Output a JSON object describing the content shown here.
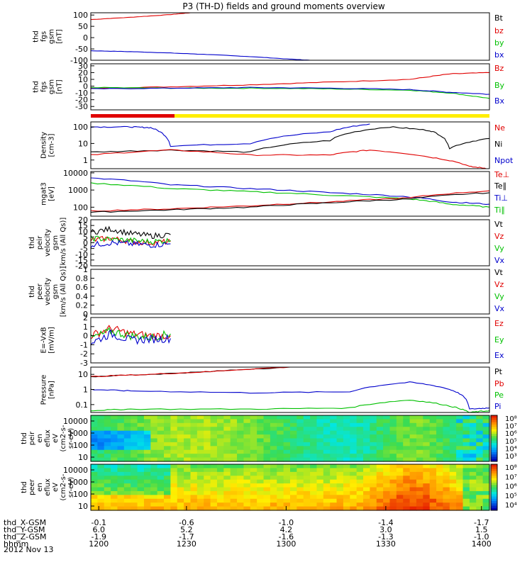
{
  "title": "P3 (TH-D) fields and ground moments overview",
  "chart_data": [
    {
      "type": "line",
      "id": "fgs-gsm-large",
      "ylabel": [
        "thd",
        "fgs",
        "gsm",
        "[nT]"
      ],
      "yticks": [
        100,
        50,
        0,
        -50,
        -100
      ],
      "ylim": [
        -100,
        110
      ],
      "legend": [
        {
          "label": "Bt",
          "color": "#000000"
        },
        {
          "label": "bz",
          "color": "#e00000"
        },
        {
          "label": "by",
          "color": "#00c000"
        },
        {
          "label": "bx",
          "color": "#0000cc"
        }
      ],
      "series": [
        {
          "name": "bz",
          "color": "#e00000",
          "x": [
            0,
            0.1,
            0.2,
            0.25
          ],
          "y": [
            80,
            90,
            102,
            110
          ]
        },
        {
          "name": "bx",
          "color": "#0000cc",
          "x": [
            0,
            0.1,
            0.2,
            0.3,
            0.4,
            0.5,
            0.55
          ],
          "y": [
            -58,
            -62,
            -68,
            -75,
            -84,
            -95,
            -100
          ]
        }
      ]
    },
    {
      "type": "line",
      "id": "fgs-gsm-small",
      "ylabel": [
        "thd",
        "fgs",
        "gsm",
        "[nT]"
      ],
      "yticks": [
        30,
        20,
        10,
        0,
        -10,
        -20,
        -30
      ],
      "ylim": [
        -35,
        33
      ],
      "legend": [
        {
          "label": "Bz",
          "color": "#e00000"
        },
        {
          "label": "By",
          "color": "#00c000"
        },
        {
          "label": "Bx",
          "color": "#0000cc"
        }
      ],
      "series": [
        {
          "name": "Bz",
          "color": "#e00000",
          "x": [
            0,
            0.2,
            0.4,
            0.6,
            0.8,
            0.9,
            1.0
          ],
          "y": [
            -3,
            -1,
            2,
            6,
            10,
            18,
            20
          ]
        },
        {
          "name": "By",
          "color": "#00c000",
          "x": [
            0,
            0.2,
            0.4,
            0.6,
            0.8,
            0.9,
            1.0
          ],
          "y": [
            -2,
            -3,
            -3,
            -4,
            -6,
            -10,
            -18
          ]
        },
        {
          "name": "Bx",
          "color": "#0000cc",
          "x": [
            0,
            0.2,
            0.4,
            0.6,
            0.8,
            0.9,
            1.0
          ],
          "y": [
            -4,
            -3,
            -2,
            -3,
            -5,
            -9,
            -12
          ]
        }
      ]
    },
    {
      "type": "line",
      "id": "density",
      "ylabel": [
        "Density",
        "[cm-3]"
      ],
      "yscale": "log",
      "yticks": [
        100,
        10,
        1
      ],
      "ylim": [
        0.3,
        200
      ],
      "legend": [
        {
          "label": "Ne",
          "color": "#e00000"
        },
        {
          "label": "Ni",
          "color": "#000000"
        },
        {
          "label": "Npot",
          "color": "#0000cc"
        }
      ],
      "series": [
        {
          "name": "Npot",
          "color": "#0000cc",
          "x": [
            0,
            0.1,
            0.15,
            0.2,
            0.4,
            0.6,
            0.7
          ],
          "y": [
            100,
            100,
            90,
            7,
            10,
            50,
            150
          ]
        },
        {
          "name": "Ni",
          "color": "#000000",
          "x": [
            0,
            0.2,
            0.4,
            0.6,
            0.75,
            0.85,
            0.9,
            1.0
          ],
          "y": [
            3,
            4,
            3,
            15,
            100,
            60,
            5,
            20
          ]
        },
        {
          "name": "Ne",
          "color": "#e00000",
          "x": [
            0,
            0.2,
            0.4,
            0.6,
            0.7,
            0.85,
            0.95,
            1.0
          ],
          "y": [
            2,
            4,
            2,
            2,
            4,
            1.5,
            0.4,
            0.3
          ]
        }
      ]
    },
    {
      "type": "line",
      "id": "temperature",
      "ylabel": [
        "mgat3",
        "[eV]"
      ],
      "yscale": "log",
      "yticks": [
        10000,
        1000,
        100
      ],
      "ylim": [
        30,
        12000
      ],
      "legend": [
        {
          "label": "Te⊥",
          "color": "#e00000"
        },
        {
          "label": "Te∥",
          "color": "#000000"
        },
        {
          "label": "Ti⊥",
          "color": "#0000cc"
        },
        {
          "label": "Ti∥",
          "color": "#00c000"
        }
      ],
      "series": [
        {
          "name": "Ti⊥",
          "color": "#0000cc",
          "x": [
            0,
            0.2,
            0.4,
            0.6,
            0.8,
            0.9,
            1.0
          ],
          "y": [
            5000,
            2000,
            1200,
            700,
            400,
            200,
            150
          ]
        },
        {
          "name": "Ti∥",
          "color": "#00c000",
          "x": [
            0,
            0.2,
            0.4,
            0.6,
            0.8,
            0.9,
            1.0
          ],
          "y": [
            2500,
            1200,
            800,
            500,
            300,
            150,
            100
          ]
        },
        {
          "name": "Te⊥",
          "color": "#e00000",
          "x": [
            0,
            0.2,
            0.4,
            0.6,
            0.8,
            1.0
          ],
          "y": [
            60,
            80,
            120,
            200,
            350,
            900
          ]
        },
        {
          "name": "Te∥",
          "color": "#000000",
          "x": [
            0,
            0.2,
            0.4,
            0.6,
            0.8,
            1.0
          ],
          "y": [
            50,
            70,
            100,
            180,
            300,
            700
          ]
        }
      ]
    },
    {
      "type": "line",
      "id": "peir-velocity",
      "ylabel": [
        "thd",
        "peir",
        "velocity",
        "gsm",
        "[km/s (All Qs)]"
      ],
      "yticks": [
        20,
        15,
        10,
        5,
        0,
        -5,
        -10,
        -15,
        -20
      ],
      "ylim": [
        -20,
        20
      ],
      "legend": [
        {
          "label": "Vt",
          "color": "#000000"
        },
        {
          "label": "Vz",
          "color": "#e00000"
        },
        {
          "label": "Vy",
          "color": "#00c000"
        },
        {
          "label": "Vx",
          "color": "#0000cc"
        }
      ],
      "series": [
        {
          "name": "Vt",
          "color": "#000000",
          "x": [
            0,
            0.05,
            0.1,
            0.15,
            0.2
          ],
          "y": [
            9,
            12,
            8,
            6,
            7
          ]
        },
        {
          "name": "Vz",
          "color": "#e00000",
          "x": [
            0,
            0.05,
            0.1,
            0.15,
            0.2
          ],
          "y": [
            2,
            4,
            1,
            0,
            1
          ]
        },
        {
          "name": "Vy",
          "color": "#00c000",
          "x": [
            0,
            0.05,
            0.1,
            0.15,
            0.2
          ],
          "y": [
            4,
            3,
            2,
            1,
            2
          ]
        },
        {
          "name": "Vx",
          "color": "#0000cc",
          "x": [
            0,
            0.05,
            0.1,
            0.15,
            0.2
          ],
          "y": [
            -2,
            0,
            -1,
            -2,
            -1
          ]
        }
      ]
    },
    {
      "type": "line",
      "id": "peer-velocity",
      "ylabel": [
        "thd",
        "peer",
        "velocity",
        "gsm",
        "[km/s (All Qs)]"
      ],
      "yticks": [
        1.0,
        0.8,
        0.6,
        0.4,
        0.2,
        0.0
      ],
      "ylim": [
        0,
        1
      ],
      "legend": [
        {
          "label": "Vt",
          "color": "#000000"
        },
        {
          "label": "Vz",
          "color": "#e00000"
        },
        {
          "label": "Vy",
          "color": "#00c000"
        },
        {
          "label": "Vx",
          "color": "#0000cc"
        }
      ],
      "series": []
    },
    {
      "type": "line",
      "id": "efield",
      "ylabel": [
        "E=-VxB",
        "[mV/m]"
      ],
      "yticks": [
        2,
        1,
        0,
        -1,
        -2,
        -3
      ],
      "ylim": [
        -3,
        2
      ],
      "legend": [
        {
          "label": "Ez",
          "color": "#e00000"
        },
        {
          "label": "Ey",
          "color": "#00c000"
        },
        {
          "label": "Ex",
          "color": "#0000cc"
        }
      ],
      "series": [
        {
          "name": "Ez",
          "color": "#e00000",
          "x": [
            0,
            0.05,
            0.1,
            0.15,
            0.2
          ],
          "y": [
            0,
            0.8,
            0.2,
            0,
            0
          ]
        },
        {
          "name": "Ey",
          "color": "#00c000",
          "x": [
            0,
            0.05,
            0.1,
            0.15,
            0.2
          ],
          "y": [
            -0.3,
            0.5,
            0,
            -0.2,
            0.2
          ]
        },
        {
          "name": "Ex",
          "color": "#0000cc",
          "x": [
            0,
            0.05,
            0.1,
            0.15,
            0.2
          ],
          "y": [
            -0.8,
            0.2,
            -0.5,
            -0.4,
            -0.3
          ]
        }
      ]
    },
    {
      "type": "line",
      "id": "pressure",
      "ylabel": [
        "Pressure",
        "[nPa]"
      ],
      "yscale": "log",
      "yticks": [
        10.0,
        1.0,
        0.1
      ],
      "ylim": [
        0.03,
        30
      ],
      "legend": [
        {
          "label": "Pt",
          "color": "#000000"
        },
        {
          "label": "Pb",
          "color": "#e00000"
        },
        {
          "label": "Pe",
          "color": "#00c000"
        },
        {
          "label": "Pi",
          "color": "#0000cc"
        }
      ],
      "series": [
        {
          "name": "Pt",
          "color": "#000000",
          "x": [
            0,
            0.15,
            0.3,
            0.5
          ],
          "y": [
            7,
            10,
            15,
            30
          ]
        },
        {
          "name": "Pb",
          "color": "#e00000",
          "x": [
            0,
            0.15,
            0.3,
            0.5
          ],
          "y": [
            7,
            10,
            15,
            30
          ]
        },
        {
          "name": "Pi",
          "color": "#0000cc",
          "x": [
            0,
            0.1,
            0.4,
            0.65,
            0.8,
            0.9,
            0.95,
            1.0
          ],
          "y": [
            1,
            0.8,
            0.6,
            0.7,
            3,
            1,
            0.05,
            0.06
          ]
        },
        {
          "name": "Pe",
          "color": "#00c000",
          "x": [
            0,
            0.1,
            0.4,
            0.65,
            0.8,
            0.9,
            0.95,
            1.0
          ],
          "y": [
            0.04,
            0.05,
            0.05,
            0.06,
            0.2,
            0.08,
            0.03,
            0.04
          ]
        }
      ]
    },
    {
      "type": "heatmap",
      "id": "peir-en-eflux",
      "ylabel": [
        "thd",
        "peir",
        "en",
        "eflux",
        "eV",
        "(cm2-s-",
        "sr-eV)"
      ],
      "yscale": "log",
      "yticks": [
        10000,
        1000,
        100,
        10
      ],
      "colorbar": {
        "labels": [
          "10⁸",
          "10⁷",
          "10⁶",
          "10⁵",
          "10⁴",
          "10³"
        ]
      }
    },
    {
      "type": "heatmap",
      "id": "peer-en-eflux",
      "ylabel": [
        "thd",
        "peer",
        "en",
        "eflux",
        "eV",
        "(cm2-s-",
        "sr-eV)"
      ],
      "yscale": "log",
      "yticks": [
        10000,
        1000,
        100,
        10
      ],
      "colorbar": {
        "labels": [
          "10⁸",
          "10⁷",
          "10⁶",
          "10⁵",
          "10⁴"
        ]
      }
    }
  ],
  "status_bar": {
    "red_fraction": 0.21
  },
  "xaxis": {
    "rows": [
      {
        "label": "thd_X-GSM",
        "values": [
          "-0.1",
          "-0.6",
          "-1.0",
          "-1.4",
          "-1.7"
        ]
      },
      {
        "label": "thd_Y-GSM",
        "values": [
          "6.0",
          "5.2",
          "4.2",
          "3.0",
          "1.5"
        ]
      },
      {
        "label": "thd_Z-GSM",
        "values": [
          "-1.9",
          "-1.7",
          "-1.6",
          "-1.3",
          "-1.0"
        ]
      },
      {
        "label": "hhmm",
        "values": [
          "1200",
          "1230",
          "1300",
          "1330",
          "1400"
        ]
      }
    ],
    "date": "2012 Nov 13"
  },
  "colors": {
    "red": "#e00000",
    "green": "#00c000",
    "blue": "#0000cc",
    "yellow": "#ffee00"
  }
}
